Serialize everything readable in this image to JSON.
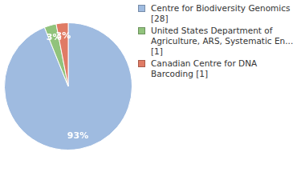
{
  "chart_data": {
    "type": "pie",
    "categories": [
      "Centre for Biodiversity Genomics [28]",
      "United States Department of Agriculture, ARS, Systematic En... [1]",
      "Canadian Centre for DNA Barcoding [1]"
    ],
    "values": [
      93,
      3,
      3
    ],
    "value_labels": [
      "93%",
      "3%",
      "3%"
    ],
    "colors": [
      "#9fbbe0",
      "#91c37c",
      "#e07b65"
    ],
    "data_labels": true,
    "legend": "right"
  }
}
